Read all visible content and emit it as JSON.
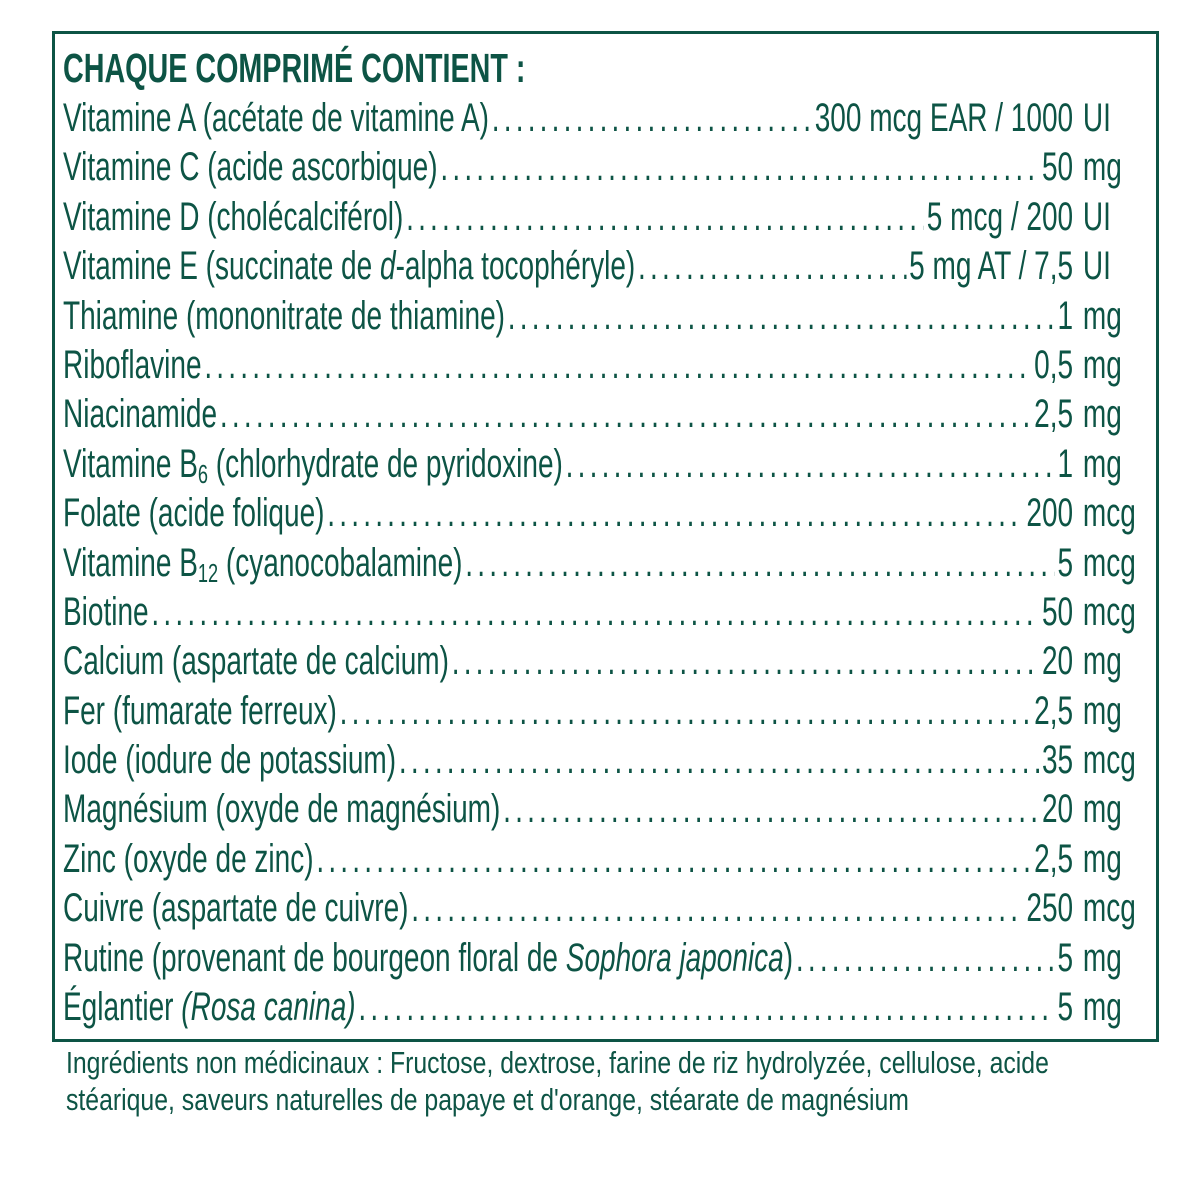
{
  "title": "CHAQUE COMPRIMÉ CONTIENT :",
  "color": "#0d5445",
  "ingredients": [
    {
      "name": [
        {
          "t": "Vitamine A (acétate de vitamine A)"
        }
      ],
      "value": "300 mcg EAR / 1000",
      "unit": "UI"
    },
    {
      "name": [
        {
          "t": "Vitamine C (acide ascorbique)"
        }
      ],
      "value": "50",
      "unit": "mg"
    },
    {
      "name": [
        {
          "t": "Vitamine D (cholécalciférol)"
        }
      ],
      "value": "5 mcg / 200",
      "unit": "UI"
    },
    {
      "name": [
        {
          "t": "Vitamine E (succinate de "
        },
        {
          "t": "d",
          "s": "it"
        },
        {
          "t": "-alpha tocophéryle)"
        }
      ],
      "value": "5 mg AT / 7,5",
      "unit": "UI"
    },
    {
      "name": [
        {
          "t": "Thiamine (mononitrate de thiamine)"
        }
      ],
      "value": "1",
      "unit": "mg"
    },
    {
      "name": [
        {
          "t": "Riboflavine"
        }
      ],
      "value": "0,5",
      "unit": "mg"
    },
    {
      "name": [
        {
          "t": "Niacinamide"
        }
      ],
      "value": "2,5",
      "unit": "mg"
    },
    {
      "name": [
        {
          "t": "Vitamine B"
        },
        {
          "t": "6",
          "s": "sub"
        },
        {
          "t": " (chlorhydrate de pyridoxine)"
        }
      ],
      "value": "1",
      "unit": "mg"
    },
    {
      "name": [
        {
          "t": "Folate (acide folique)"
        }
      ],
      "value": "200",
      "unit": "mcg"
    },
    {
      "name": [
        {
          "t": "Vitamine B"
        },
        {
          "t": "12",
          "s": "sub"
        },
        {
          "t": " (cyanocobalamine)"
        }
      ],
      "value": "5",
      "unit": "mcg"
    },
    {
      "name": [
        {
          "t": "Biotine"
        }
      ],
      "value": "50",
      "unit": "mcg"
    },
    {
      "name": [
        {
          "t": "Calcium (aspartate de calcium)"
        }
      ],
      "value": "20",
      "unit": "mg"
    },
    {
      "name": [
        {
          "t": "Fer (fumarate ferreux)"
        }
      ],
      "value": "2,5",
      "unit": "mg"
    },
    {
      "name": [
        {
          "t": "Iode (iodure de potassium)"
        }
      ],
      "value": "35",
      "unit": "mcg"
    },
    {
      "name": [
        {
          "t": "Magnésium (oxyde de magnésium)"
        }
      ],
      "value": "20",
      "unit": "mg"
    },
    {
      "name": [
        {
          "t": "Zinc (oxyde de zinc)"
        }
      ],
      "value": "2,5",
      "unit": "mg"
    },
    {
      "name": [
        {
          "t": "Cuivre (aspartate de cuivre)"
        }
      ],
      "value": "250",
      "unit": "mcg"
    },
    {
      "name": [
        {
          "t": "Rutine (provenant de bourgeon floral de "
        },
        {
          "t": "Sophora japonica",
          "s": "it"
        },
        {
          "t": ")"
        }
      ],
      "value": "5",
      "unit": "mg"
    },
    {
      "name": [
        {
          "t": "Églantier "
        },
        {
          "t": "(Rosa canina)",
          "s": "it"
        }
      ],
      "value": "5",
      "unit": "mg"
    }
  ],
  "non_medicinal": "Ingrédients non médicinaux : Fructose, dextrose, farine de riz hydrolyzée, cellulose, acide stéarique, saveurs naturelles de papaye et d'orange, stéarate de magnésium"
}
